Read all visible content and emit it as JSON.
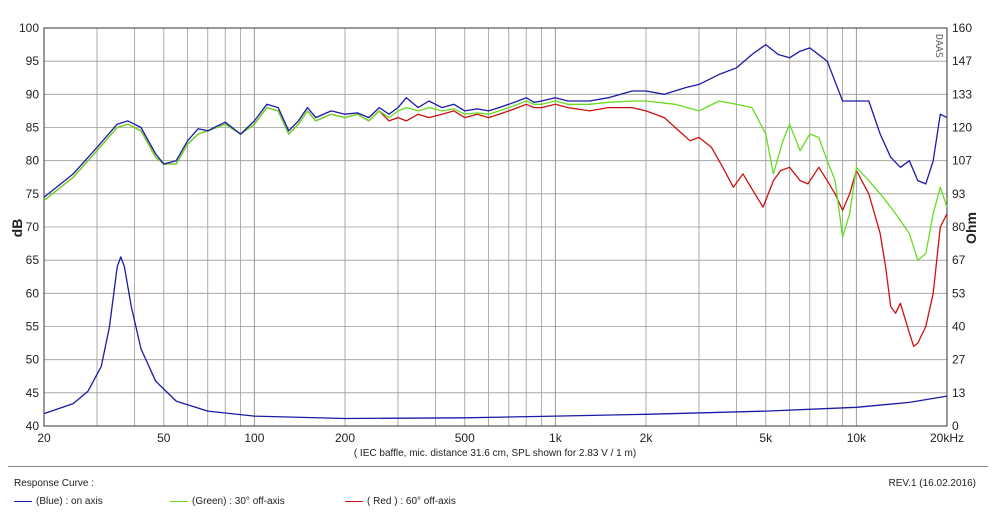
{
  "chart_data": {
    "type": "line",
    "x_scale": "log",
    "xlim": [
      20,
      20000
    ],
    "ylim": [
      40,
      100
    ],
    "y2lim": [
      0,
      160
    ],
    "xlabel": "",
    "ylabel": "dB",
    "y2label": "Ohm",
    "x_ticks": [
      20,
      50,
      100,
      200,
      500,
      1000,
      2000,
      5000,
      10000,
      20000
    ],
    "x_tick_labels": [
      "20",
      "50",
      "100",
      "200",
      "500",
      "1k",
      "2k",
      "5k",
      "10k",
      "20kHz"
    ],
    "y_ticks": [
      40,
      45,
      50,
      55,
      60,
      65,
      70,
      75,
      80,
      85,
      90,
      95,
      100
    ],
    "y2_tick_labels": [
      "0",
      "13",
      "27",
      "40",
      "53",
      "67",
      "80",
      "93",
      "107",
      "120",
      "133",
      "147",
      "160"
    ],
    "grid": true,
    "note": "( IEC baffle, mic. distance 31.6 cm, SPL shown for 2.83 V / 1 m)",
    "series": [
      {
        "name": "on axis",
        "color": "#1a1aa8",
        "axis": "left",
        "points": [
          [
            20,
            74.5
          ],
          [
            25,
            78
          ],
          [
            30,
            82
          ],
          [
            35,
            85.5
          ],
          [
            38,
            86
          ],
          [
            42,
            85
          ],
          [
            47,
            81
          ],
          [
            50,
            79.5
          ],
          [
            55,
            80
          ],
          [
            60,
            83
          ],
          [
            65,
            84.8
          ],
          [
            70,
            84.5
          ],
          [
            75,
            85.2
          ],
          [
            80,
            85.8
          ],
          [
            90,
            84
          ],
          [
            100,
            86
          ],
          [
            110,
            88.5
          ],
          [
            120,
            88
          ],
          [
            130,
            84.5
          ],
          [
            140,
            86
          ],
          [
            150,
            88
          ],
          [
            160,
            86.5
          ],
          [
            180,
            87.5
          ],
          [
            200,
            87
          ],
          [
            220,
            87.2
          ],
          [
            240,
            86.5
          ],
          [
            260,
            88
          ],
          [
            280,
            87
          ],
          [
            300,
            88
          ],
          [
            320,
            89.5
          ],
          [
            350,
            88
          ],
          [
            380,
            89
          ],
          [
            420,
            88
          ],
          [
            460,
            88.5
          ],
          [
            500,
            87.5
          ],
          [
            550,
            87.8
          ],
          [
            600,
            87.5
          ],
          [
            650,
            88
          ],
          [
            700,
            88.5
          ],
          [
            750,
            89
          ],
          [
            800,
            89.5
          ],
          [
            850,
            88.8
          ],
          [
            900,
            89
          ],
          [
            1000,
            89.5
          ],
          [
            1100,
            89
          ],
          [
            1300,
            89
          ],
          [
            1500,
            89.5
          ],
          [
            1800,
            90.5
          ],
          [
            2000,
            90.5
          ],
          [
            2300,
            90
          ],
          [
            2700,
            91
          ],
          [
            3000,
            91.5
          ],
          [
            3500,
            93
          ],
          [
            4000,
            94
          ],
          [
            4500,
            96
          ],
          [
            5000,
            97.5
          ],
          [
            5500,
            96
          ],
          [
            6000,
            95.5
          ],
          [
            6500,
            96.5
          ],
          [
            7000,
            97
          ],
          [
            8000,
            95
          ],
          [
            9000,
            89
          ],
          [
            10000,
            89
          ],
          [
            11000,
            89
          ],
          [
            12000,
            84
          ],
          [
            13000,
            80.5
          ],
          [
            14000,
            79
          ],
          [
            15000,
            80
          ],
          [
            16000,
            77
          ],
          [
            17000,
            76.5
          ],
          [
            18000,
            80
          ],
          [
            19000,
            87
          ],
          [
            20000,
            86.5
          ]
        ]
      },
      {
        "name": "30° off-axis",
        "color": "#66dd22",
        "axis": "left",
        "points": [
          [
            20,
            74
          ],
          [
            25,
            77.5
          ],
          [
            30,
            81.5
          ],
          [
            35,
            85
          ],
          [
            38,
            85.5
          ],
          [
            42,
            84.5
          ],
          [
            47,
            80.5
          ],
          [
            50,
            79.5
          ],
          [
            55,
            79.5
          ],
          [
            60,
            82.5
          ],
          [
            65,
            84
          ],
          [
            70,
            84.5
          ],
          [
            75,
            85
          ],
          [
            80,
            85.5
          ],
          [
            90,
            84
          ],
          [
            100,
            85.5
          ],
          [
            110,
            88
          ],
          [
            120,
            87.5
          ],
          [
            130,
            84
          ],
          [
            140,
            85.5
          ],
          [
            150,
            87.5
          ],
          [
            160,
            86
          ],
          [
            180,
            87
          ],
          [
            200,
            86.5
          ],
          [
            220,
            87
          ],
          [
            240,
            86
          ],
          [
            260,
            87.5
          ],
          [
            280,
            86.5
          ],
          [
            300,
            87.5
          ],
          [
            320,
            88
          ],
          [
            350,
            87.5
          ],
          [
            380,
            88
          ],
          [
            420,
            87.5
          ],
          [
            460,
            87.8
          ],
          [
            500,
            87
          ],
          [
            550,
            87.2
          ],
          [
            600,
            87
          ],
          [
            650,
            87.5
          ],
          [
            700,
            88
          ],
          [
            750,
            88.5
          ],
          [
            800,
            89
          ],
          [
            850,
            88.5
          ],
          [
            900,
            88.5
          ],
          [
            1000,
            89
          ],
          [
            1100,
            88.5
          ],
          [
            1300,
            88.5
          ],
          [
            1500,
            88.8
          ],
          [
            1800,
            89
          ],
          [
            2000,
            89
          ],
          [
            2500,
            88.5
          ],
          [
            3000,
            87.5
          ],
          [
            3500,
            89
          ],
          [
            4000,
            88.5
          ],
          [
            4500,
            88
          ],
          [
            5000,
            84
          ],
          [
            5300,
            78
          ],
          [
            5700,
            83
          ],
          [
            6000,
            85.5
          ],
          [
            6500,
            81.5
          ],
          [
            7000,
            84
          ],
          [
            7500,
            83.5
          ],
          [
            8000,
            80
          ],
          [
            8500,
            77
          ],
          [
            9000,
            68.5
          ],
          [
            9500,
            72
          ],
          [
            10000,
            79
          ],
          [
            11000,
            77
          ],
          [
            12000,
            75
          ],
          [
            13000,
            73
          ],
          [
            14000,
            71
          ],
          [
            15000,
            69
          ],
          [
            16000,
            65
          ],
          [
            17000,
            66
          ],
          [
            18000,
            72
          ],
          [
            19000,
            76
          ],
          [
            20000,
            73
          ]
        ]
      },
      {
        "name": "60° off-axis",
        "color": "#cc1111",
        "axis": "left",
        "points": [
          [
            20,
            74
          ],
          [
            25,
            77.5
          ],
          [
            30,
            81.5
          ],
          [
            35,
            85
          ],
          [
            38,
            85.5
          ],
          [
            42,
            84.5
          ],
          [
            47,
            80.5
          ],
          [
            50,
            79.5
          ],
          [
            55,
            79.5
          ],
          [
            60,
            82.5
          ],
          [
            65,
            84
          ],
          [
            70,
            84.5
          ],
          [
            75,
            85
          ],
          [
            80,
            85.5
          ],
          [
            90,
            84
          ],
          [
            100,
            85.5
          ],
          [
            110,
            88
          ],
          [
            120,
            87.5
          ],
          [
            130,
            84
          ],
          [
            140,
            85.5
          ],
          [
            150,
            87.5
          ],
          [
            160,
            86
          ],
          [
            180,
            87
          ],
          [
            200,
            86.5
          ],
          [
            220,
            87
          ],
          [
            240,
            86
          ],
          [
            260,
            87.5
          ],
          [
            280,
            86
          ],
          [
            300,
            86.5
          ],
          [
            320,
            86
          ],
          [
            350,
            87
          ],
          [
            380,
            86.5
          ],
          [
            420,
            87
          ],
          [
            460,
            87.5
          ],
          [
            500,
            86.5
          ],
          [
            550,
            87
          ],
          [
            600,
            86.5
          ],
          [
            650,
            87
          ],
          [
            700,
            87.5
          ],
          [
            750,
            88
          ],
          [
            800,
            88.5
          ],
          [
            850,
            88
          ],
          [
            900,
            88
          ],
          [
            1000,
            88.5
          ],
          [
            1100,
            88
          ],
          [
            1300,
            87.5
          ],
          [
            1500,
            88
          ],
          [
            1800,
            88
          ],
          [
            2000,
            87.5
          ],
          [
            2300,
            86.5
          ],
          [
            2500,
            85
          ],
          [
            2800,
            83
          ],
          [
            3000,
            83.5
          ],
          [
            3300,
            82
          ],
          [
            3600,
            79
          ],
          [
            3900,
            76
          ],
          [
            4200,
            78
          ],
          [
            4600,
            75
          ],
          [
            4900,
            73
          ],
          [
            5300,
            77
          ],
          [
            5600,
            78.5
          ],
          [
            6000,
            79
          ],
          [
            6500,
            77
          ],
          [
            6900,
            76.5
          ],
          [
            7500,
            79
          ],
          [
            8000,
            77
          ],
          [
            8500,
            75
          ],
          [
            9000,
            72.5
          ],
          [
            9500,
            75
          ],
          [
            10000,
            78.5
          ],
          [
            11000,
            75
          ],
          [
            12000,
            69
          ],
          [
            12500,
            64
          ],
          [
            13000,
            58
          ],
          [
            13500,
            57
          ],
          [
            14000,
            58.5
          ],
          [
            15000,
            54
          ],
          [
            15500,
            52
          ],
          [
            16000,
            52.5
          ],
          [
            17000,
            55
          ],
          [
            18000,
            60
          ],
          [
            19000,
            70
          ],
          [
            20000,
            72
          ]
        ]
      },
      {
        "name": "impedance",
        "color": "#1a1aa8",
        "axis": "right",
        "points": [
          [
            20,
            5
          ],
          [
            25,
            9
          ],
          [
            28,
            14
          ],
          [
            31,
            24
          ],
          [
            33,
            40
          ],
          [
            35,
            64
          ],
          [
            36,
            68
          ],
          [
            37,
            64
          ],
          [
            39,
            48
          ],
          [
            42,
            31
          ],
          [
            47,
            18
          ],
          [
            55,
            10
          ],
          [
            70,
            6
          ],
          [
            100,
            4
          ],
          [
            200,
            3
          ],
          [
            500,
            3.3
          ],
          [
            1000,
            4
          ],
          [
            2000,
            4.7
          ],
          [
            5000,
            6
          ],
          [
            10000,
            7.5
          ],
          [
            15000,
            9.5
          ],
          [
            20000,
            12
          ]
        ]
      }
    ]
  },
  "legend": {
    "title": "Response Curve :",
    "items": [
      {
        "label": "(Blue) : on axis",
        "color": "#1a1aa8"
      },
      {
        "label": "(Green) : 30° off-axis",
        "color": "#66dd22"
      },
      {
        "label": "( Red ) : 60° off-axis",
        "color": "#cc1111"
      }
    ]
  },
  "revision": "REV.1 (16.02.2016)",
  "brand": "DAAS"
}
